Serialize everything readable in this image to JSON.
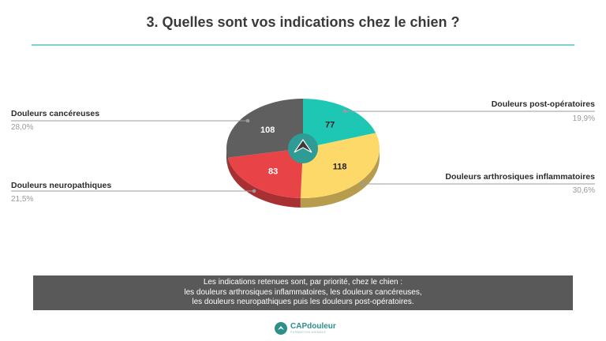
{
  "title": "3. Quelles sont vos indications chez le chien ?",
  "chart_data": {
    "type": "pie",
    "slices": [
      {
        "label": "Douleurs post-opératoires",
        "value": 77,
        "percent": "19,9%",
        "color": "#1ec6b4",
        "side": "right"
      },
      {
        "label": "Douleurs arthrosiques inflammatoires",
        "value": 118,
        "percent": "30,6%",
        "color": "#fdd96a",
        "side": "right"
      },
      {
        "label": "Douleurs neuropathiques",
        "value": 83,
        "percent": "21,5%",
        "color": "#e84347",
        "side": "left"
      },
      {
        "label": "Douleurs cancéreuses",
        "value": 108,
        "percent": "28,0%",
        "color": "#5f5f5f",
        "side": "left"
      }
    ]
  },
  "summary": {
    "line1": "Les indications retenues sont, par priorité, chez le chien :",
    "line2": "les douleurs arthrosiques inflammatoires, les douleurs cancéreuses,",
    "line3": "les douleurs neuropathiques puis les douleurs post-opératoires."
  },
  "brand": {
    "name": "CAPdouleur",
    "tagline": "FORMATION ANIMALE"
  }
}
